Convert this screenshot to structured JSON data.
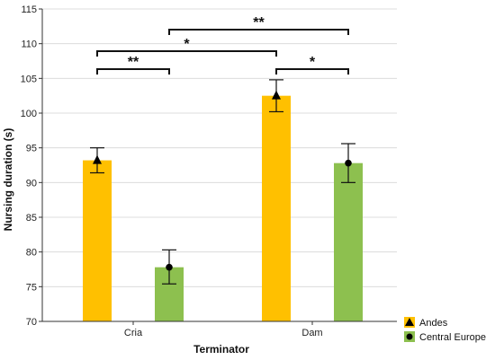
{
  "chart_data": {
    "type": "bar",
    "title": "",
    "xlabel": "Terminator",
    "ylabel": "Nursing duration (s)",
    "ylim": [
      70,
      115
    ],
    "yticks": [
      70,
      75,
      80,
      85,
      90,
      95,
      100,
      105,
      110,
      115
    ],
    "grid": true,
    "categories": [
      "Cria",
      "Dam"
    ],
    "series": [
      {
        "name": "Andes",
        "color": "#FFC000",
        "marker": "triangle",
        "values": [
          93.2,
          102.5
        ],
        "err_low": [
          91.4,
          100.2
        ],
        "err_high": [
          95.0,
          104.8
        ]
      },
      {
        "name": "Central Europe",
        "color": "#8DC04F",
        "marker": "circle",
        "values": [
          77.8,
          92.8
        ],
        "err_low": [
          75.4,
          90.0
        ],
        "err_high": [
          80.3,
          95.6
        ]
      }
    ],
    "significance": [
      {
        "from": [
          0,
          0
        ],
        "to": [
          0,
          1
        ],
        "label": "**"
      },
      {
        "from": [
          0,
          0
        ],
        "to": [
          1,
          0
        ],
        "label": "*"
      },
      {
        "from": [
          0,
          1
        ],
        "to": [
          1,
          1
        ],
        "label": "**"
      },
      {
        "from": [
          1,
          0
        ],
        "to": [
          1,
          1
        ],
        "label": "*"
      }
    ],
    "legend_position": "bottom-right"
  }
}
